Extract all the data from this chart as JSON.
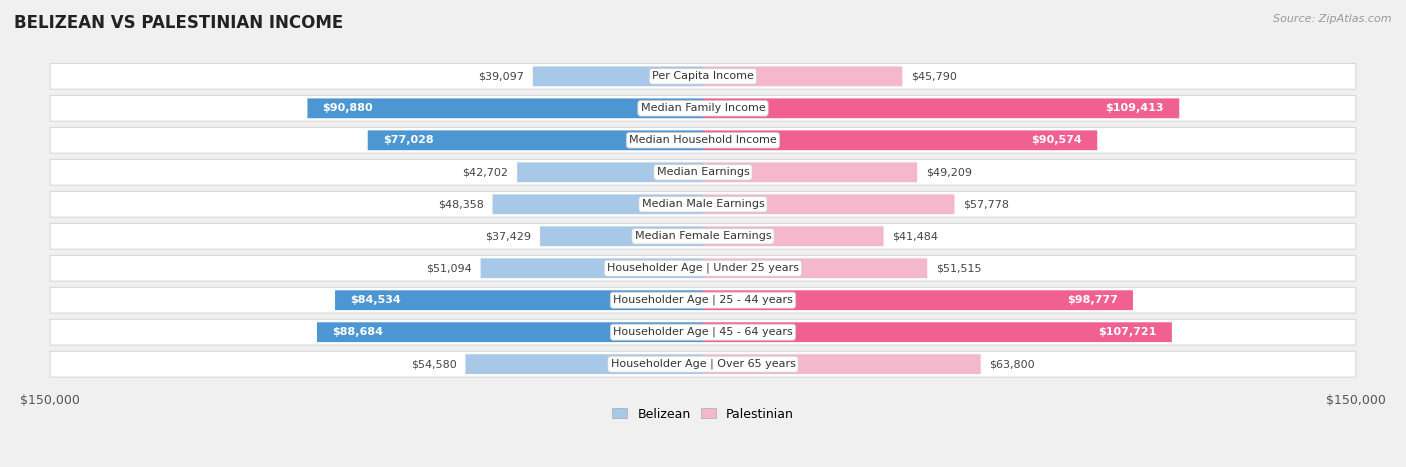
{
  "title": "BELIZEAN VS PALESTINIAN INCOME",
  "source": "Source: ZipAtlas.com",
  "categories": [
    "Per Capita Income",
    "Median Family Income",
    "Median Household Income",
    "Median Earnings",
    "Median Male Earnings",
    "Median Female Earnings",
    "Householder Age | Under 25 years",
    "Householder Age | 25 - 44 years",
    "Householder Age | 45 - 64 years",
    "Householder Age | Over 65 years"
  ],
  "belizean": [
    39097,
    90880,
    77028,
    42702,
    48358,
    37429,
    51094,
    84534,
    88684,
    54580
  ],
  "palestinian": [
    45790,
    109413,
    90574,
    49209,
    57778,
    41484,
    51515,
    98777,
    107721,
    63800
  ],
  "max_val": 150000,
  "belizean_light": "#a8c8e8",
  "belizean_dark": "#4d96d4",
  "palestinian_light": "#f5b8cb",
  "palestinian_dark": "#f06090",
  "bg_color": "#f0f0f0",
  "row_bg": "#ffffff",
  "bar_height": 0.62,
  "threshold_dark_label": 65000,
  "row_padding": 0.19,
  "title_fontsize": 12,
  "label_fontsize": 8,
  "val_fontsize": 8
}
